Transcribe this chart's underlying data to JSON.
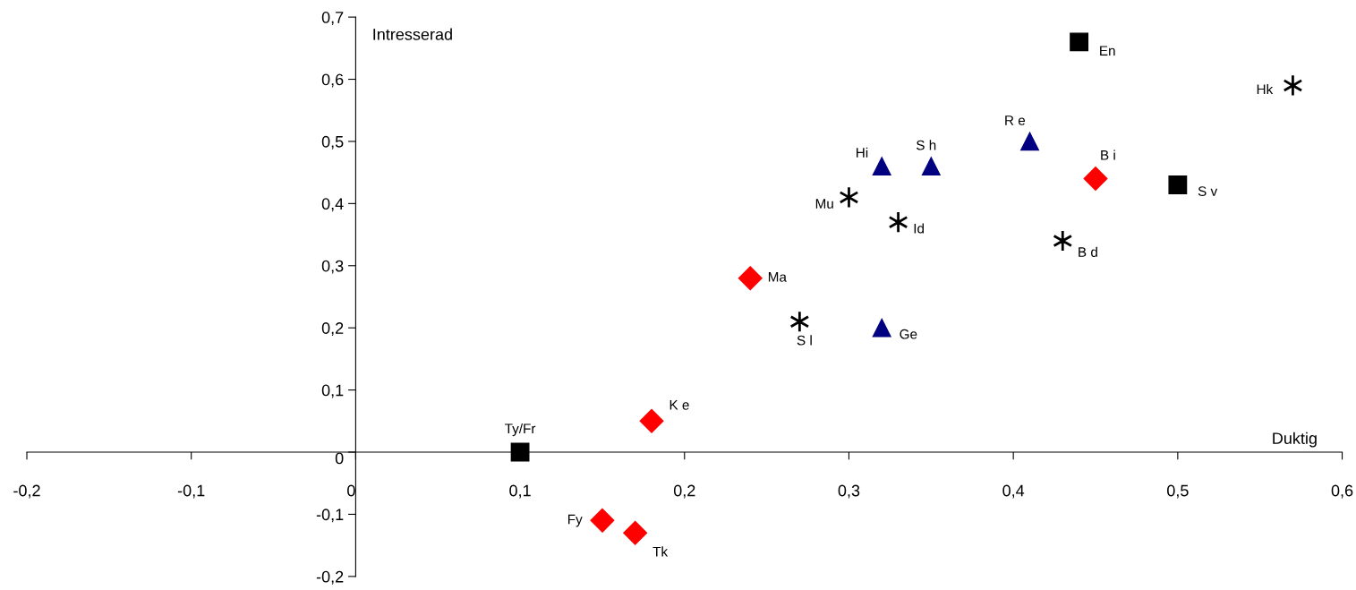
{
  "chart_data": {
    "type": "scatter",
    "xlabel": "Duktig",
    "ylabel": "Intresserad",
    "xlim": [
      -0.2,
      0.6
    ],
    "ylim": [
      -0.2,
      0.7
    ],
    "xticks": [
      {
        "value": -0.2,
        "label": "-0,2"
      },
      {
        "value": -0.1,
        "label": "-0,1"
      },
      {
        "value": 0,
        "label": "0"
      },
      {
        "value": 0.1,
        "label": "0,1"
      },
      {
        "value": 0.2,
        "label": "0,2"
      },
      {
        "value": 0.3,
        "label": "0,3"
      },
      {
        "value": 0.4,
        "label": "0,4"
      },
      {
        "value": 0.5,
        "label": "0,5"
      },
      {
        "value": 0.6,
        "label": "0,6"
      }
    ],
    "yticks": [
      {
        "value": -0.2,
        "label": "-0,2"
      },
      {
        "value": -0.1,
        "label": "-0,1"
      },
      {
        "value": 0,
        "label": "0"
      },
      {
        "value": 0.1,
        "label": "0,1"
      },
      {
        "value": 0.2,
        "label": "0,2"
      },
      {
        "value": 0.3,
        "label": "0,3"
      },
      {
        "value": 0.4,
        "label": "0,4"
      },
      {
        "value": 0.5,
        "label": "0,5"
      },
      {
        "value": 0.6,
        "label": "0,6"
      },
      {
        "value": 0.7,
        "label": "0,7"
      }
    ],
    "grid": false,
    "legend": false,
    "series": [
      {
        "color": "#000000",
        "marker": "square",
        "x": [
          0.44,
          0.5,
          0.1
        ],
        "values": [
          0.66,
          0.43,
          0.0
        ]
      },
      {
        "color": "#000080",
        "marker": "triangle",
        "x": [
          0.41,
          0.32,
          0.35,
          0.32
        ],
        "values": [
          0.5,
          0.46,
          0.46,
          0.2
        ]
      },
      {
        "color": "#ff0000",
        "marker": "diamond",
        "x": [
          0.45,
          0.24,
          0.18,
          0.15,
          0.17
        ],
        "values": [
          0.44,
          0.28,
          0.05,
          -0.11,
          -0.13
        ]
      },
      {
        "color": "#000000",
        "marker": "cross",
        "x": [
          0.57,
          0.3,
          0.33,
          0.43,
          0.27
        ],
        "values": [
          0.59,
          0.41,
          0.37,
          0.34,
          0.21
        ]
      }
    ],
    "annotations": [
      {
        "text": "En",
        "x": 0.44,
        "y": 0.66
      },
      {
        "text": "S v",
        "x": 0.5,
        "y": 0.43
      },
      {
        "text": "Ty/Fr",
        "x": 0.1,
        "y": 0.0
      },
      {
        "text": "R e",
        "x": 0.41,
        "y": 0.5
      },
      {
        "text": "Hi",
        "x": 0.32,
        "y": 0.46
      },
      {
        "text": "S h",
        "x": 0.35,
        "y": 0.46
      },
      {
        "text": "Ge",
        "x": 0.32,
        "y": 0.2
      },
      {
        "text": "B i",
        "x": 0.45,
        "y": 0.44
      },
      {
        "text": "Ma",
        "x": 0.24,
        "y": 0.28
      },
      {
        "text": "K e",
        "x": 0.18,
        "y": 0.05
      },
      {
        "text": "Fy",
        "x": 0.15,
        "y": -0.11
      },
      {
        "text": "Tk",
        "x": 0.17,
        "y": -0.13
      },
      {
        "text": "Hk",
        "x": 0.57,
        "y": 0.59
      },
      {
        "text": "Mu",
        "x": 0.3,
        "y": 0.41
      },
      {
        "text": "Id",
        "x": 0.33,
        "y": 0.37
      },
      {
        "text": "B d",
        "x": 0.43,
        "y": 0.34
      },
      {
        "text": "S l",
        "x": 0.27,
        "y": 0.21
      }
    ]
  }
}
